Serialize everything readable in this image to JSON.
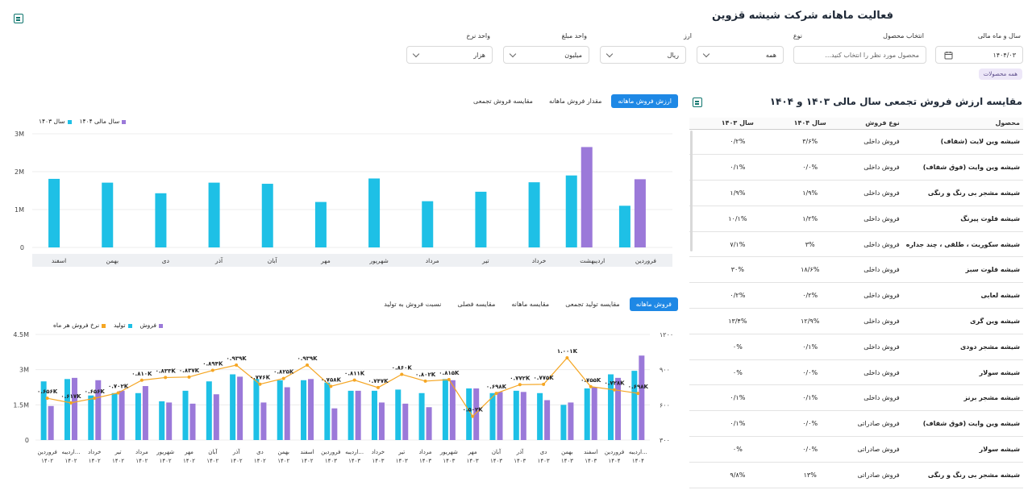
{
  "header": {
    "title": "فعالیت ماهانه شرکت شیشه قزوین"
  },
  "filters": {
    "fiscal": {
      "label": "سال و ماه مالی",
      "value": "۱۴۰۴/۰۳"
    },
    "product": {
      "label": "انتخاب محصول",
      "placeholder": "محصول مورد نظر را انتخاب کنید..."
    },
    "type": {
      "label": "نوع",
      "value": "همه"
    },
    "currency": {
      "label": "ارز",
      "value": "ریال"
    },
    "amount_unit": {
      "label": "واحد مبلغ",
      "value": "میلیون"
    },
    "rate_unit": {
      "label": "واحد نرخ",
      "value": "هزار"
    },
    "chip": "همه محصولات"
  },
  "top_chart": {
    "tabs": [
      "ارزش فروش ماهانه",
      "مقدار فروش ماهانه",
      "مقایسه فروش تجمعی"
    ],
    "active_tab": 0,
    "legend": [
      {
        "name": "سال مالی ۱۴۰۴",
        "color": "#9b79d9"
      },
      {
        "name": "سال ۱۴۰۳",
        "color": "#1ec0e6"
      }
    ],
    "y_ticks": [
      "3M",
      "2M",
      "1M",
      "0"
    ]
  },
  "chart_data": [
    {
      "type": "bar",
      "categories": [
        "فروردین",
        "اردیبهشت",
        "خرداد",
        "تیر",
        "مرداد",
        "شهریور",
        "مهر",
        "آبان",
        "آذر",
        "دی",
        "بهمن",
        "اسفند"
      ],
      "series": [
        {
          "name": "سال ۱۴۰۳",
          "color": "#1ec0e6",
          "values": [
            1.1,
            1.9,
            1.72,
            1.47,
            1.22,
            1.82,
            1.2,
            1.68,
            1.71,
            1.43,
            1.71,
            1.81
          ]
        },
        {
          "name": "سال مالی ۱۴۰۴",
          "color": "#9b79d9",
          "values": [
            1.8,
            2.65,
            null,
            null,
            null,
            null,
            null,
            null,
            null,
            null,
            null,
            null
          ]
        }
      ],
      "ylim": [
        0,
        3
      ],
      "unit": "M"
    },
    {
      "type": "bar",
      "categories": [
        "فروردین ۱۴۰۲",
        "اردیبه... ۱۴۰۲",
        "خرداد ۱۴۰۲",
        "تیر ۱۴۰۲",
        "مرداد ۱۴۰۲",
        "شهریور ۱۴۰۲",
        "مهر ۱۴۰۲",
        "آبان ۱۴۰۲",
        "آذر ۱۴۰۲",
        "دی ۱۴۰۲",
        "بهمن ۱۴۰۲",
        "اسفند ۱۴۰۲",
        "فروردین ۱۴۰۳",
        "اردیبه... ۱۴۰۳",
        "خرداد ۱۴۰۳",
        "تیر ۱۴۰۳",
        "مرداد ۱۴۰۳",
        "شهریور ۱۴۰۳",
        "مهر ۱۴۰۳",
        "آبان ۱۴۰۳",
        "آذر ۱۴۰۳",
        "دی ۱۴۰۳",
        "بهمن ۱۴۰۳",
        "اسفند ۱۴۰۳",
        "فروردین ۱۴۰۴",
        "اردیبه... ۱۴۰۴"
      ],
      "series": [
        {
          "name": "تولید",
          "color": "#1ec0e6",
          "values": [
            2.5,
            2.6,
            1.9,
            2.0,
            2.0,
            1.65,
            2.1,
            2.5,
            2.8,
            2.6,
            2.55,
            2.55,
            2.45,
            2.1,
            2.1,
            2.15,
            2.0,
            2.6,
            2.2,
            2.0,
            2.1,
            2.0,
            1.5,
            2.2,
            2.8,
            2.95
          ]
        },
        {
          "name": "فروش",
          "color": "#9b79d9",
          "values": [
            1.45,
            2.65,
            2.55,
            2.1,
            2.3,
            1.6,
            1.55,
            1.95,
            2.7,
            1.6,
            2.25,
            2.6,
            1.35,
            2.1,
            1.6,
            1.55,
            1.4,
            2.55,
            2.2,
            2.05,
            2.05,
            1.7,
            1.6,
            2.25,
            2.65,
            3.6
          ]
        },
        {
          "name": "نرخ فروش هر ماه",
          "color": "#f5a623",
          "values": [
            656,
            617,
            656,
            702,
            810,
            833,
            837,
            894,
            939,
            776,
            825,
            939,
            758,
            811,
            747,
            860,
            802,
            815,
            502,
            698,
            772,
            775,
            1001,
            755,
            728,
            698
          ]
        }
      ],
      "point_labels": [
        "۰.۶۵۶K",
        "۰.۶۱۷K",
        "۰.۶۵۶K",
        "۰.۷۰۲K",
        "۰.۸۱۰K",
        "۰.۸۳۳K",
        "۰.۸۳۷K",
        "۰.۸۹۴K",
        "۰.۹۳۹K",
        "۰.۷۷۶K",
        "۰.۸۲۵K",
        "۰.۹۳۹K",
        "۰.۷۵۸K",
        "۰.۸۱۱K",
        "۰.۷۴۷K",
        "۰.۸۶۰K",
        "۰.۸۰۲K",
        "۰.۸۱۵K",
        "۰.۵۰۲K",
        "۰.۶۹۸K",
        "۰.۷۷۲K",
        "۰.۷۷۵K",
        "۱.۰۰۱K",
        "۰.۷۵۵K",
        "۰.۷۲۸K",
        "۰.۶۹۸K"
      ],
      "ylim": [
        0,
        4.5
      ],
      "y2lim": [
        300,
        1200
      ],
      "unit": "M"
    }
  ],
  "bottom_chart": {
    "tabs": [
      "فروش ماهانه",
      "مقایسه تولید تجمعی",
      "مقایسه ماهانه",
      "مقایسه فصلی",
      "نسبت فروش به تولید"
    ],
    "active_tab": 0,
    "legend": [
      {
        "name": "فروش",
        "color": "#9b79d9"
      },
      {
        "name": "تولید",
        "color": "#1ec0e6"
      },
      {
        "name": "نرخ فروش هر ماه",
        "color": "#f5a623"
      }
    ],
    "y_ticks": [
      "4.5M",
      "3M",
      "1.5M",
      "0"
    ],
    "y2_ticks": [
      "۱۲۰۰",
      "۹۰۰",
      "۶۰۰",
      "۳۰۰"
    ]
  },
  "comparison": {
    "title": "مقایسه ارزش فروش تجمعی سال مالی ۱۴۰۳ و ۱۴۰۴",
    "columns": [
      "محصول",
      "نوع فروش",
      "سال ۱۴۰۴",
      "سال ۱۴۰۳"
    ],
    "rows": [
      [
        "شیشه وین لایت (شفاف)",
        "فروش داخلی",
        "۳/۶%",
        "۰/۲%"
      ],
      [
        "شیشه وین وایت (فوق شفاف)",
        "فروش داخلی",
        "۰/۰%",
        "۰/۱%"
      ],
      [
        "شیشه مشجر بی رنگ و رنگی",
        "فروش داخلی",
        "۱/۹%",
        "۱/۹%"
      ],
      [
        "شیشه فلوت پیرنگ",
        "فروش داخلی",
        "۱/۲%",
        "۱۰/۱%"
      ],
      [
        "شیشه سکوریت ، طلقی ، چند جداره",
        "فروش داخلی",
        "۳%",
        "۷/۱%"
      ],
      [
        "شیشه فلوت سبز",
        "فروش داخلی",
        "۱۸/۶%",
        "۳۰%"
      ],
      [
        "شیشه لعابی",
        "فروش داخلی",
        "۰/۲%",
        "۰/۲%"
      ],
      [
        "شیشه وین گری",
        "فروش داخلی",
        "۱۲/۹%",
        "۱۳/۴%"
      ],
      [
        "شیشه مشجر دودی",
        "فروش داخلی",
        "۰/۱%",
        "۰%"
      ],
      [
        "شیشه سولار",
        "فروش داخلی",
        "۰/۰%",
        "۰%"
      ],
      [
        "شیشه مشجر برنز",
        "فروش داخلی",
        "۰/۱%",
        "۰/۱%"
      ],
      [
        "شیشه وین وایت (فوق شفاف)",
        "فروش صادراتی",
        "۰/۰%",
        "۰/۱%"
      ],
      [
        "شیشه سولار",
        "فروش صادراتی",
        "۰/۰%",
        "۰%"
      ],
      [
        "شیشه مشجر بی رنگ و رنگی",
        "فروش صادراتی",
        "۱۳%",
        "۹/۸%"
      ]
    ]
  }
}
